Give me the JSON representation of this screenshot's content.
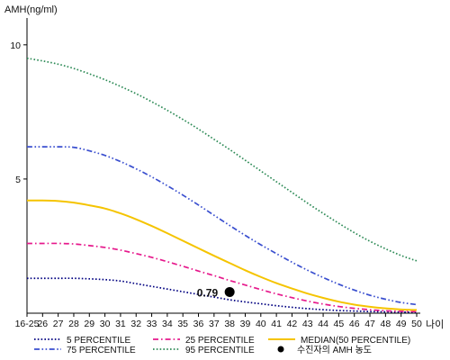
{
  "chart_data": {
    "type": "line",
    "ylabel": "AMH(ng/ml)",
    "xlabel": "나이",
    "x": [
      "16-25",
      "26",
      "27",
      "28",
      "29",
      "30",
      "31",
      "32",
      "33",
      "34",
      "35",
      "36",
      "37",
      "38",
      "39",
      "40",
      "41",
      "42",
      "43",
      "44",
      "45",
      "46",
      "47",
      "48",
      "49",
      "50"
    ],
    "ylim": [
      0,
      11
    ],
    "yticks": [
      5,
      10
    ],
    "grid": false,
    "legend_position": "bottom",
    "series": [
      {
        "name": "5 PERCENTILE",
        "color": "#000080",
        "dash": "dotted",
        "values": [
          1.3,
          1.3,
          1.3,
          1.3,
          1.28,
          1.25,
          1.2,
          1.1,
          1.0,
          0.9,
          0.8,
          0.7,
          0.6,
          0.5,
          0.42,
          0.35,
          0.28,
          0.22,
          0.17,
          0.13,
          0.1,
          0.08,
          0.06,
          0.05,
          0.04,
          0.04
        ]
      },
      {
        "name": "25 PERCENTILE",
        "color": "#e6198c",
        "dash": "dashdot",
        "values": [
          2.6,
          2.6,
          2.6,
          2.58,
          2.52,
          2.45,
          2.35,
          2.22,
          2.08,
          1.92,
          1.75,
          1.57,
          1.4,
          1.22,
          1.05,
          0.88,
          0.72,
          0.58,
          0.45,
          0.34,
          0.25,
          0.18,
          0.13,
          0.09,
          0.07,
          0.06
        ]
      },
      {
        "name": "MEDIAN(50 PERCENTILE)",
        "color": "#f5c400",
        "dash": "solid",
        "values": [
          4.2,
          4.2,
          4.18,
          4.12,
          4.02,
          3.9,
          3.72,
          3.5,
          3.25,
          2.98,
          2.7,
          2.42,
          2.14,
          1.87,
          1.6,
          1.35,
          1.12,
          0.92,
          0.73,
          0.57,
          0.43,
          0.32,
          0.24,
          0.18,
          0.14,
          0.12
        ]
      },
      {
        "name": "75 PERCENTILE",
        "color": "#3a4fcf",
        "dash": "dashdotdot",
        "values": [
          6.2,
          6.2,
          6.2,
          6.18,
          6.05,
          5.88,
          5.65,
          5.38,
          5.08,
          4.75,
          4.4,
          4.03,
          3.65,
          3.27,
          2.9,
          2.55,
          2.22,
          1.9,
          1.6,
          1.33,
          1.08,
          0.86,
          0.67,
          0.52,
          0.4,
          0.32
        ]
      },
      {
        "name": "95 PERCENTILE",
        "color": "#2e8b57",
        "dash": "dotted",
        "values": [
          9.5,
          9.4,
          9.28,
          9.12,
          8.92,
          8.7,
          8.45,
          8.18,
          7.88,
          7.56,
          7.22,
          6.86,
          6.48,
          6.1,
          5.7,
          5.3,
          4.9,
          4.5,
          4.1,
          3.72,
          3.35,
          3.0,
          2.68,
          2.4,
          2.15,
          1.95
        ]
      }
    ],
    "marker": {
      "name": "수진자의 AMH 농도",
      "x": "38",
      "y": 0.79,
      "label": "0.79",
      "color": "#000000"
    }
  }
}
